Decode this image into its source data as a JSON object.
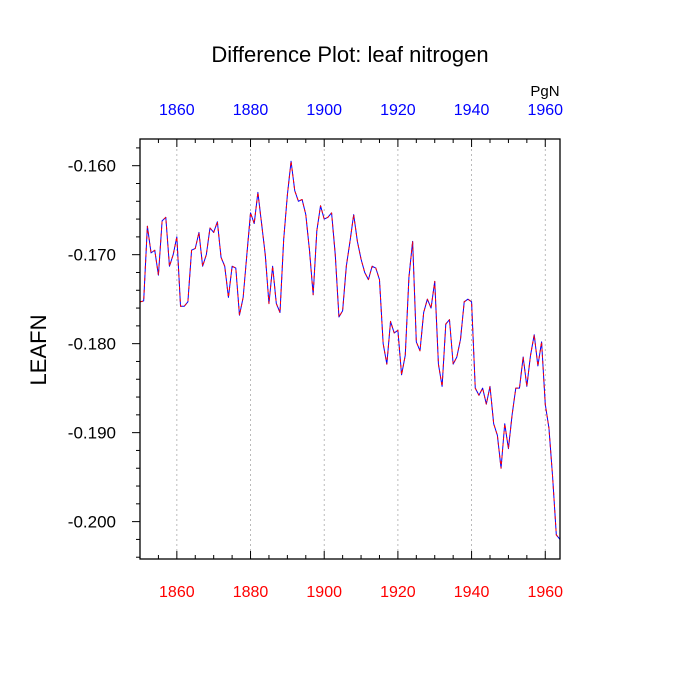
{
  "chart_data": {
    "type": "line",
    "title": "Difference Plot: leaf nitrogen",
    "ylabel": "LEAFN",
    "units_label": "PgN",
    "xlim": [
      1850,
      1964
    ],
    "ylim": [
      -0.2042,
      -0.157
    ],
    "x_ticks": [
      1860,
      1880,
      1900,
      1920,
      1940,
      1960
    ],
    "x_tick_labels": [
      "1860",
      "1880",
      "1900",
      "1920",
      "1940",
      "1960"
    ],
    "y_ticks": [
      -0.2,
      -0.19,
      -0.18,
      -0.17,
      -0.16
    ],
    "y_tick_labels": [
      "-0.200",
      "-0.190",
      "-0.180",
      "-0.170",
      "-0.160"
    ],
    "x_grid": true,
    "y_grid": false,
    "colors": {
      "top_axis_labels": "#0000ff",
      "bottom_axis_labels": "#ff0000",
      "series_solid": "#0000ff",
      "series_dashed": "#ff0000",
      "grid": "#aaaaaa",
      "frame": "#000000"
    },
    "series": [
      {
        "style": "dashed-overlay",
        "x": [
          1850,
          1851,
          1852,
          1853,
          1854,
          1855,
          1856,
          1857,
          1858,
          1859,
          1860,
          1861,
          1862,
          1863,
          1864,
          1865,
          1866,
          1867,
          1868,
          1869,
          1870,
          1871,
          1872,
          1873,
          1874,
          1875,
          1876,
          1877,
          1878,
          1879,
          1880,
          1881,
          1882,
          1883,
          1884,
          1885,
          1886,
          1887,
          1888,
          1889,
          1890,
          1891,
          1892,
          1893,
          1894,
          1895,
          1896,
          1897,
          1898,
          1899,
          1900,
          1901,
          1902,
          1903,
          1904,
          1905,
          1906,
          1907,
          1908,
          1909,
          1910,
          1911,
          1912,
          1913,
          1914,
          1915,
          1916,
          1917,
          1918,
          1919,
          1920,
          1921,
          1922,
          1923,
          1924,
          1925,
          1926,
          1927,
          1928,
          1929,
          1930,
          1931,
          1932,
          1933,
          1934,
          1935,
          1936,
          1937,
          1938,
          1939,
          1940,
          1941,
          1942,
          1943,
          1944,
          1945,
          1946,
          1947,
          1948,
          1949,
          1950,
          1951,
          1952,
          1953,
          1954,
          1955,
          1956,
          1957,
          1958,
          1959,
          1960,
          1961,
          1962,
          1963,
          1964
        ],
        "values": [
          -0.1753,
          -0.1752,
          -0.1668,
          -0.1698,
          -0.1695,
          -0.1723,
          -0.1662,
          -0.1658,
          -0.1713,
          -0.17,
          -0.168,
          -0.1758,
          -0.1758,
          -0.1753,
          -0.1695,
          -0.1693,
          -0.1675,
          -0.1713,
          -0.17,
          -0.167,
          -0.1675,
          -0.1663,
          -0.1703,
          -0.1713,
          -0.1748,
          -0.1713,
          -0.1715,
          -0.1768,
          -0.1748,
          -0.17,
          -0.1653,
          -0.1665,
          -0.163,
          -0.1665,
          -0.17,
          -0.1755,
          -0.1713,
          -0.1755,
          -0.1765,
          -0.1683,
          -0.1633,
          -0.1595,
          -0.1628,
          -0.164,
          -0.1638,
          -0.1655,
          -0.1695,
          -0.1745,
          -0.1673,
          -0.1645,
          -0.166,
          -0.1658,
          -0.1653,
          -0.17,
          -0.177,
          -0.1763,
          -0.1713,
          -0.1685,
          -0.1655,
          -0.1685,
          -0.1705,
          -0.172,
          -0.1728,
          -0.1713,
          -0.1715,
          -0.1728,
          -0.18,
          -0.1823,
          -0.1775,
          -0.1788,
          -0.1785,
          -0.1835,
          -0.1813,
          -0.1725,
          -0.1685,
          -0.1798,
          -0.1808,
          -0.1765,
          -0.175,
          -0.176,
          -0.173,
          -0.1823,
          -0.1848,
          -0.1778,
          -0.1773,
          -0.1823,
          -0.1815,
          -0.1795,
          -0.1753,
          -0.175,
          -0.1753,
          -0.185,
          -0.1858,
          -0.185,
          -0.1868,
          -0.1848,
          -0.189,
          -0.1903,
          -0.194,
          -0.189,
          -0.1918,
          -0.188,
          -0.185,
          -0.185,
          -0.1815,
          -0.1848,
          -0.1813,
          -0.179,
          -0.1825,
          -0.1798,
          -0.1868,
          -0.1895,
          -0.195,
          -0.2015,
          -0.202
        ]
      }
    ]
  }
}
